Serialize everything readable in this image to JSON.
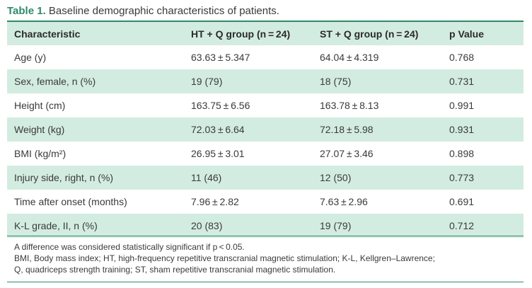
{
  "caption": {
    "label": "Table 1.",
    "text": "Baseline demographic characteristics of patients."
  },
  "table": {
    "columns": [
      "Characteristic",
      "HT + Q group (n = 24)",
      "ST + Q group (n = 24)",
      "p Value"
    ],
    "rows": [
      [
        "Age (y)",
        "63.63 ± 5.347",
        "64.04 ± 4.319",
        "0.768"
      ],
      [
        "Sex, female, n (%)",
        "19 (79)",
        "18 (75)",
        "0.731"
      ],
      [
        "Height (cm)",
        "163.75 ± 6.56",
        "163.78 ± 8.13",
        "0.991"
      ],
      [
        "Weight (kg)",
        "72.03 ± 6.64",
        "72.18 ± 5.98",
        "0.931"
      ],
      [
        "BMI (kg/m²)",
        "26.95 ± 3.01",
        "27.07 ± 3.46",
        "0.898"
      ],
      [
        "Injury side, right, n (%)",
        "11 (46)",
        "12 (50)",
        "0.773"
      ],
      [
        "Time after onset (months)",
        "7.96 ± 2.82",
        "7.63 ± 2.96",
        "0.691"
      ],
      [
        "K-L grade, II, n (%)",
        "20 (83)",
        "19 (79)",
        "0.712"
      ]
    ]
  },
  "notes": {
    "line1": "A difference was considered statistically significant if p < 0.05.",
    "line2": "BMI, Body mass index; HT, high-frequency repetitive transcranial magnetic stimulation; K-L, Kellgren–Lawrence;",
    "line3": "Q, quadriceps strength training; ST, sham repetitive transcranial magnetic stimulation."
  },
  "colors": {
    "accent": "#2e8a6a",
    "stripe": "#d3ece1"
  }
}
